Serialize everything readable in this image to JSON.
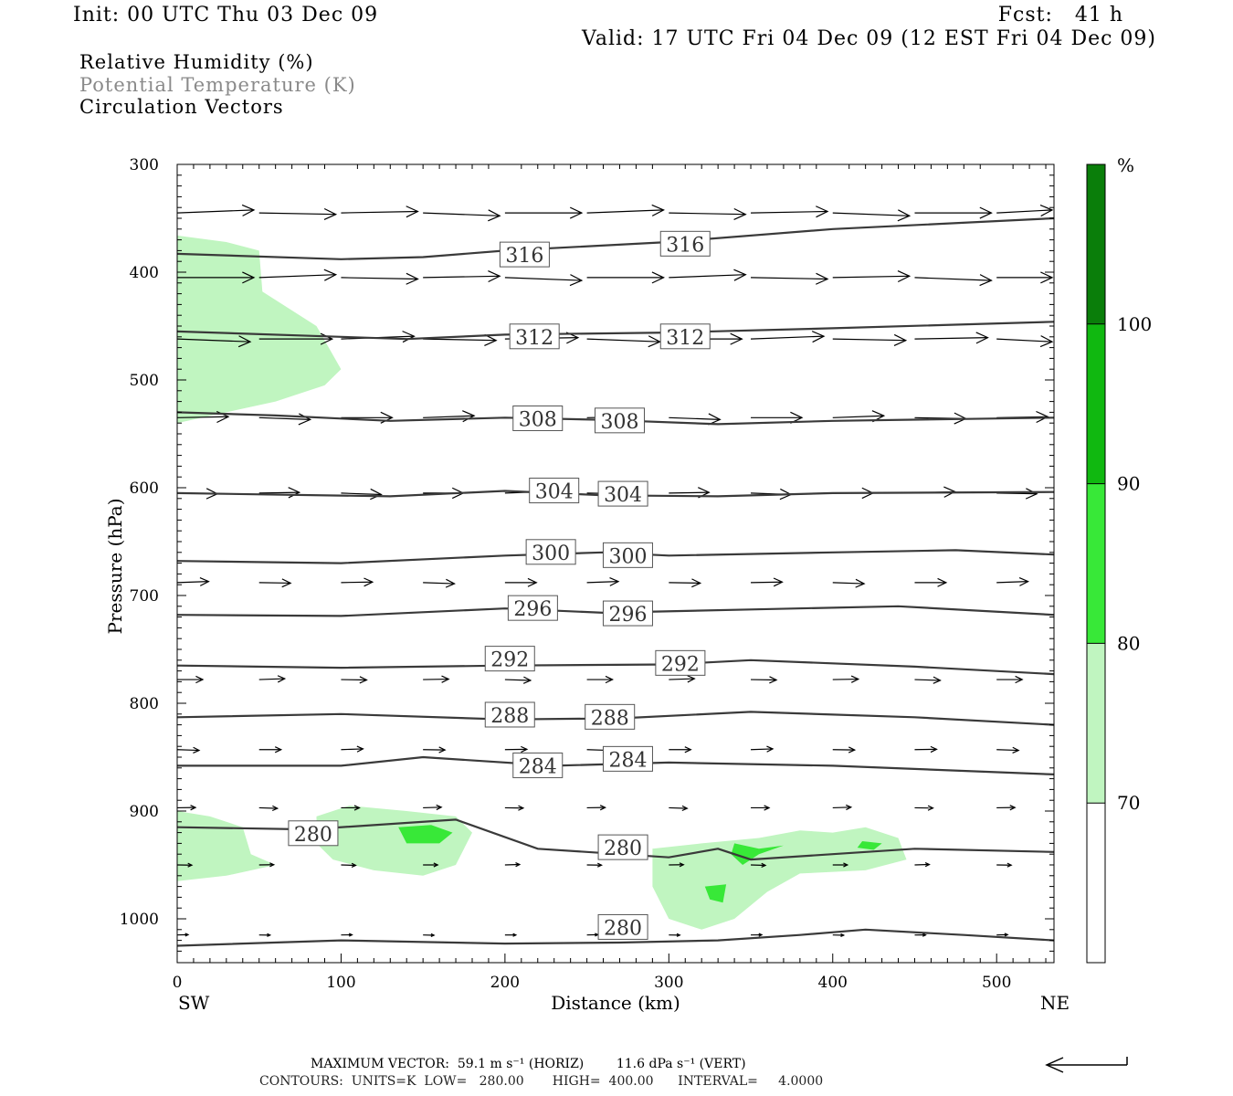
{
  "header": {
    "init": "Init: 00 UTC Thu 03 Dec 09",
    "fcst": "Fcst:   41 h",
    "valid": "Valid: 17 UTC Fri 04 Dec 09 (12 EST Fri 04 Dec 09)"
  },
  "legend_text": {
    "line1": "Relative Humidity (%)",
    "line2": "Potential Temperature (K)",
    "line3": "Circulation Vectors"
  },
  "footer": {
    "max_vector": "MAXIMUM VECTOR:  59.1 m s⁻¹ (HORIZ)        11.6 dPa s⁻¹ (VERT)",
    "contours": "CONTOURS:  UNITS=K  LOW=   280.00       HIGH=  400.00      INTERVAL=     4.0000"
  },
  "colors": {
    "rh70": "#c0f5c0",
    "rh80": "#38e838",
    "rh90": "#10b810",
    "rh100": "#0a7e0a",
    "theta": "#3a3a3a"
  },
  "chart_data": {
    "type": "cross-section",
    "xlabel": "Distance (km)",
    "ylabel": "Pressure (hPa)",
    "x_ticks": [
      0,
      100,
      200,
      300,
      400,
      500
    ],
    "y_ticks": [
      300,
      400,
      500,
      600,
      700,
      800,
      900,
      1000
    ],
    "xlim": [
      0,
      535
    ],
    "ylim": [
      300,
      1040
    ],
    "endpoints": {
      "left": "SW",
      "right": "NE"
    },
    "colorbar": {
      "unit": "%",
      "levels": [
        70,
        80,
        90,
        100
      ]
    },
    "theta_contours": [
      {
        "value": 316,
        "points": [
          [
            0,
            383
          ],
          [
            100,
            388
          ],
          [
            150,
            386
          ],
          [
            200,
            380
          ],
          [
            300,
            372
          ],
          [
            400,
            360
          ],
          [
            535,
            350
          ]
        ],
        "labels": [
          [
            212,
            384
          ],
          [
            310,
            374
          ]
        ]
      },
      {
        "value": 312,
        "points": [
          [
            0,
            455
          ],
          [
            100,
            460
          ],
          [
            140,
            462
          ],
          [
            200,
            458
          ],
          [
            300,
            456
          ],
          [
            400,
            452
          ],
          [
            535,
            446
          ]
        ],
        "labels": [
          [
            218,
            460
          ],
          [
            310,
            460
          ]
        ]
      },
      {
        "value": 308,
        "points": [
          [
            0,
            530
          ],
          [
            60,
            533
          ],
          [
            130,
            538
          ],
          [
            200,
            535
          ],
          [
            260,
            537
          ],
          [
            330,
            541
          ],
          [
            400,
            538
          ],
          [
            535,
            535
          ]
        ],
        "labels": [
          [
            220,
            536
          ],
          [
            270,
            538
          ]
        ]
      },
      {
        "value": 304,
        "points": [
          [
            0,
            605
          ],
          [
            130,
            608
          ],
          [
            200,
            603
          ],
          [
            260,
            607
          ],
          [
            330,
            608
          ],
          [
            400,
            605
          ],
          [
            535,
            604
          ]
        ],
        "labels": [
          [
            230,
            603
          ],
          [
            272,
            606
          ]
        ]
      },
      {
        "value": 300,
        "points": [
          [
            0,
            668
          ],
          [
            100,
            670
          ],
          [
            200,
            663
          ],
          [
            260,
            660
          ],
          [
            300,
            663
          ],
          [
            400,
            660
          ],
          [
            475,
            658
          ],
          [
            535,
            662
          ]
        ],
        "labels": [
          [
            228,
            660
          ],
          [
            275,
            663
          ]
        ]
      },
      {
        "value": 296,
        "points": [
          [
            0,
            718
          ],
          [
            100,
            719
          ],
          [
            200,
            712
          ],
          [
            260,
            716
          ],
          [
            350,
            713
          ],
          [
            440,
            710
          ],
          [
            535,
            718
          ]
        ],
        "labels": [
          [
            217,
            712
          ],
          [
            275,
            717
          ]
        ]
      },
      {
        "value": 292,
        "points": [
          [
            0,
            765
          ],
          [
            100,
            767
          ],
          [
            200,
            765
          ],
          [
            300,
            764
          ],
          [
            350,
            760
          ],
          [
            450,
            766
          ],
          [
            535,
            773
          ]
        ],
        "labels": [
          [
            203,
            759
          ],
          [
            307,
            763
          ]
        ]
      },
      {
        "value": 288,
        "points": [
          [
            0,
            813
          ],
          [
            100,
            810
          ],
          [
            200,
            815
          ],
          [
            270,
            814
          ],
          [
            350,
            808
          ],
          [
            450,
            813
          ],
          [
            535,
            820
          ]
        ],
        "labels": [
          [
            203,
            811
          ],
          [
            264,
            813
          ]
        ]
      },
      {
        "value": 284,
        "points": [
          [
            0,
            858
          ],
          [
            100,
            858
          ],
          [
            150,
            850
          ],
          [
            230,
            858
          ],
          [
            300,
            855
          ],
          [
            400,
            858
          ],
          [
            535,
            866
          ]
        ],
        "labels": [
          [
            220,
            858
          ],
          [
            275,
            852
          ]
        ]
      },
      {
        "value": 280,
        "points": [
          [
            0,
            915
          ],
          [
            80,
            917
          ],
          [
            170,
            908
          ],
          [
            220,
            935
          ],
          [
            300,
            943
          ],
          [
            330,
            935
          ],
          [
            350,
            945
          ],
          [
            400,
            940
          ],
          [
            450,
            935
          ],
          [
            535,
            938
          ]
        ],
        "labels": [
          [
            83,
            921
          ],
          [
            272,
            934
          ]
        ]
      },
      {
        "value": 280,
        "points": [
          [
            0,
            1025
          ],
          [
            100,
            1020
          ],
          [
            200,
            1023
          ],
          [
            270,
            1022
          ],
          [
            330,
            1020
          ],
          [
            380,
            1015
          ],
          [
            420,
            1010
          ],
          [
            480,
            1015
          ],
          [
            535,
            1020
          ]
        ],
        "labels": [
          [
            272,
            1008
          ]
        ]
      }
    ],
    "rh_regions": [
      {
        "level": 70,
        "points": [
          [
            0,
            366
          ],
          [
            30,
            372
          ],
          [
            50,
            380
          ],
          [
            52,
            418
          ],
          [
            85,
            450
          ],
          [
            100,
            490
          ],
          [
            90,
            505
          ],
          [
            60,
            520
          ],
          [
            30,
            530
          ],
          [
            0,
            540
          ]
        ]
      },
      {
        "level": 70,
        "points": [
          [
            0,
            900
          ],
          [
            20,
            905
          ],
          [
            40,
            915
          ],
          [
            45,
            940
          ],
          [
            60,
            950
          ],
          [
            30,
            960
          ],
          [
            0,
            965
          ]
        ]
      },
      {
        "level": 70,
        "points": [
          [
            85,
            905
          ],
          [
            105,
            895
          ],
          [
            140,
            900
          ],
          [
            170,
            905
          ],
          [
            180,
            920
          ],
          [
            170,
            950
          ],
          [
            150,
            960
          ],
          [
            120,
            955
          ],
          [
            95,
            945
          ],
          [
            85,
            930
          ]
        ]
      },
      {
        "level": 70,
        "points": [
          [
            290,
            935
          ],
          [
            320,
            930
          ],
          [
            355,
            925
          ],
          [
            380,
            918
          ],
          [
            400,
            920
          ],
          [
            420,
            915
          ],
          [
            440,
            925
          ],
          [
            445,
            945
          ],
          [
            420,
            955
          ],
          [
            380,
            958
          ],
          [
            360,
            975
          ],
          [
            340,
            1000
          ],
          [
            320,
            1010
          ],
          [
            300,
            1000
          ],
          [
            290,
            970
          ]
        ]
      },
      {
        "level": 80,
        "points": [
          [
            135,
            915
          ],
          [
            155,
            913
          ],
          [
            168,
            920
          ],
          [
            160,
            930
          ],
          [
            140,
            930
          ]
        ]
      },
      {
        "level": 80,
        "points": [
          [
            340,
            930
          ],
          [
            355,
            935
          ],
          [
            370,
            932
          ],
          [
            355,
            940
          ],
          [
            345,
            950
          ],
          [
            338,
            940
          ]
        ]
      },
      {
        "level": 80,
        "points": [
          [
            418,
            928
          ],
          [
            430,
            930
          ],
          [
            425,
            936
          ],
          [
            415,
            934
          ]
        ]
      },
      {
        "level": 80,
        "points": [
          [
            322,
            970
          ],
          [
            335,
            968
          ],
          [
            333,
            985
          ],
          [
            325,
            982
          ]
        ]
      }
    ],
    "max_vector": {
      "horiz_m_s": 59.1,
      "vert_dPa_s": 11.6
    },
    "contour_info": {
      "units": "K",
      "low": 280.0,
      "high": 400.0,
      "interval": 4.0
    }
  }
}
